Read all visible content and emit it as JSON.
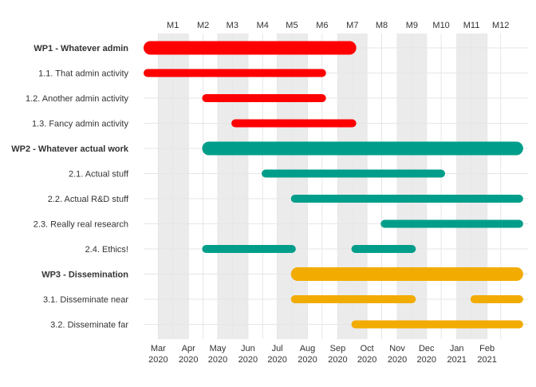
{
  "chart_data": {
    "type": "gantt",
    "top_axis_labels": [
      "M1",
      "M2",
      "M3",
      "M4",
      "M5",
      "M6",
      "M7",
      "M8",
      "M9",
      "M10",
      "M11",
      "M12"
    ],
    "bottom_axis_labels": [
      {
        "month": "Mar",
        "year": "2020"
      },
      {
        "month": "Apr",
        "year": "2020"
      },
      {
        "month": "May",
        "year": "2020"
      },
      {
        "month": "Jun",
        "year": "2020"
      },
      {
        "month": "Jul",
        "year": "2020"
      },
      {
        "month": "Aug",
        "year": "2020"
      },
      {
        "month": "Sep",
        "year": "2020"
      },
      {
        "month": "Oct",
        "year": "2020"
      },
      {
        "month": "Nov",
        "year": "2020"
      },
      {
        "month": "Dec",
        "year": "2020"
      },
      {
        "month": "Jan",
        "year": "2021"
      },
      {
        "month": "Feb",
        "year": "2021"
      }
    ],
    "x_range": [
      "2020-02-15",
      "2021-03-15"
    ],
    "shaded_months": [
      "M1",
      "M3",
      "M5",
      "M7",
      "M9",
      "M11"
    ],
    "grid": true,
    "colors": {
      "WP1": "#ff0000",
      "WP2": "#009e8a",
      "WP3": "#f2ab00",
      "shade": "#ebebeb",
      "grid": "#e6e6e6",
      "label": "#333333"
    },
    "tasks": [
      {
        "label": "WP1 - Whatever admin",
        "group": "WP1",
        "summary": true,
        "start": "2020-02-15",
        "end": "2020-09-20"
      },
      {
        "label": "1.1. That admin activity",
        "group": "WP1",
        "summary": false,
        "start": "2020-02-15",
        "end": "2020-08-20"
      },
      {
        "label": "1.2. Another admin activity",
        "group": "WP1",
        "summary": false,
        "start": "2020-04-15",
        "end": "2020-08-20"
      },
      {
        "label": "1.3. Fancy admin activity",
        "group": "WP1",
        "summary": false,
        "start": "2020-05-15",
        "end": "2020-09-20"
      },
      {
        "label": "WP2 - Whatever actual work",
        "group": "WP2",
        "summary": true,
        "start": "2020-04-15",
        "end": "2021-03-10"
      },
      {
        "label": "2.1. Actual stuff",
        "group": "WP2",
        "summary": false,
        "start": "2020-06-15",
        "end": "2020-12-20"
      },
      {
        "label": "2.2. Actual R&D stuff",
        "group": "WP2",
        "summary": false,
        "start": "2020-07-15",
        "end": "2021-03-10"
      },
      {
        "label": "2.3. Really real research",
        "group": "WP2",
        "summary": false,
        "start": "2020-10-15",
        "end": "2021-03-10"
      },
      {
        "label": "2.4. Ethics!",
        "group": "WP2",
        "summary": false,
        "start": "2020-04-15",
        "end": "2020-07-20"
      },
      {
        "label": "2.4. Ethics!",
        "group": "WP2",
        "summary": false,
        "start": "2020-09-15",
        "end": "2020-11-20"
      },
      {
        "label": "WP3 - Dissemination",
        "group": "WP3",
        "summary": true,
        "start": "2020-07-15",
        "end": "2021-03-10"
      },
      {
        "label": "3.1. Disseminate near",
        "group": "WP3",
        "summary": false,
        "start": "2020-07-15",
        "end": "2020-11-20"
      },
      {
        "label": "3.1. Disseminate near",
        "group": "WP3",
        "summary": false,
        "start": "2021-01-15",
        "end": "2021-03-10"
      },
      {
        "label": "3.2. Disseminate far",
        "group": "WP3",
        "summary": false,
        "start": "2020-09-15",
        "end": "2021-03-10"
      }
    ]
  }
}
